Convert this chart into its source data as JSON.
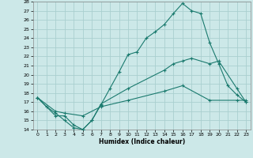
{
  "xlabel": "Humidex (Indice chaleur)",
  "bg_color": "#cce8e8",
  "grid_color": "#aacfcf",
  "line_color": "#1a7a6e",
  "xlim": [
    -0.5,
    23.5
  ],
  "ylim": [
    14,
    28
  ],
  "xticks": [
    0,
    1,
    2,
    3,
    4,
    5,
    6,
    7,
    8,
    9,
    10,
    11,
    12,
    13,
    14,
    15,
    16,
    17,
    18,
    19,
    20,
    21,
    22,
    23
  ],
  "yticks": [
    14,
    15,
    16,
    17,
    18,
    19,
    20,
    21,
    22,
    23,
    24,
    25,
    26,
    27,
    28
  ],
  "line1_x": [
    0,
    1,
    2,
    3,
    4,
    5,
    6,
    7,
    8,
    9,
    10,
    11,
    12,
    13,
    14,
    15,
    16,
    17,
    18,
    19,
    20,
    21,
    22,
    23
  ],
  "line1_y": [
    17.5,
    16.5,
    15.8,
    15.0,
    14.2,
    14.0,
    15.0,
    16.7,
    18.5,
    20.3,
    22.2,
    22.5,
    24.0,
    24.7,
    25.5,
    26.7,
    27.8,
    27.0,
    26.7,
    23.5,
    21.2,
    18.8,
    17.8,
    17.0
  ],
  "line2_x": [
    0,
    2,
    3,
    4,
    5,
    6,
    7,
    10,
    14,
    15,
    16,
    17,
    19,
    20,
    22,
    23
  ],
  "line2_y": [
    17.5,
    15.5,
    15.5,
    14.5,
    14.0,
    15.0,
    16.8,
    18.5,
    20.5,
    21.2,
    21.5,
    21.8,
    21.2,
    21.5,
    18.5,
    17.0
  ],
  "line3_x": [
    0,
    2,
    3,
    5,
    7,
    10,
    14,
    16,
    19,
    22,
    23
  ],
  "line3_y": [
    17.5,
    16.0,
    15.8,
    15.5,
    16.5,
    17.2,
    18.2,
    18.8,
    17.2,
    17.2,
    17.2
  ]
}
